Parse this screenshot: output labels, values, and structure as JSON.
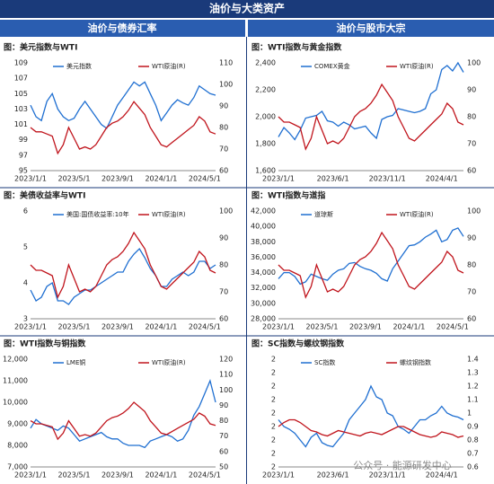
{
  "header": {
    "title": "油价与大类资产",
    "left": "油价与债券汇率",
    "right": "油价与股市大宗"
  },
  "watermark": "公众号 · 能源研发中心",
  "chart_data": [
    {
      "type": "line",
      "title": "图：美元指数与WTI",
      "categories": [
        "2023/1/1",
        null,
        null,
        null,
        null,
        null,
        null,
        null,
        "2023/5/1",
        null,
        null,
        null,
        null,
        null,
        null,
        null,
        "2023/9/1",
        null,
        null,
        null,
        null,
        null,
        null,
        null,
        "2024/1/1",
        null,
        null,
        null,
        null,
        null,
        null,
        null,
        "2024/5/1",
        null,
        null
      ],
      "ylim": [
        95,
        109
      ],
      "yticks": [
        95,
        97,
        99,
        101,
        103,
        105,
        107,
        109
      ],
      "y2lim": [
        60,
        110
      ],
      "y2ticks": [
        60,
        70,
        80,
        90,
        100,
        110
      ],
      "series": [
        {
          "name": "美元指数",
          "color": "#1f6fd1",
          "values": [
            103.5,
            102,
            101.5,
            104,
            105,
            103,
            102,
            101.5,
            101.8,
            103,
            104,
            103,
            102,
            101,
            100.5,
            102,
            103.5,
            104.5,
            105.5,
            106.5,
            106,
            106.5,
            105,
            103.5,
            101.5,
            102.5,
            103.5,
            104.2,
            103.8,
            103.5,
            104.5,
            106,
            105.5,
            105,
            104.8
          ]
        },
        {
          "name": "WTI原油(R)",
          "color": "#c0141c",
          "axis": "y2",
          "values": [
            80,
            78,
            78,
            77,
            76,
            68,
            72,
            80,
            75,
            70,
            71,
            70,
            72,
            76,
            80,
            82,
            83,
            85,
            88,
            92,
            89,
            86,
            80,
            76,
            72,
            71,
            73,
            75,
            77,
            79,
            81,
            85,
            83,
            78,
            77
          ]
        }
      ]
    },
    {
      "type": "line",
      "title": "图：WTI指数与黄金指数",
      "categories": [
        "2023/1/1",
        null,
        null,
        null,
        null,
        null,
        null,
        null,
        null,
        null,
        "2023/6/1",
        null,
        null,
        null,
        null,
        null,
        null,
        null,
        null,
        null,
        "2023/11/1",
        null,
        null,
        null,
        null,
        null,
        null,
        null,
        null,
        null,
        "2024/4/1",
        null,
        null,
        null,
        null
      ],
      "ylim": [
        1600,
        2400
      ],
      "yticks": [
        {
          "value": 1600,
          "label": "1,600"
        },
        {
          "value": 1800,
          "label": "1,800"
        },
        {
          "value": 2000,
          "label": "2,000"
        },
        {
          "value": 2200,
          "label": "2,200"
        },
        {
          "value": 2400,
          "label": "2,400"
        }
      ],
      "y2lim": [
        60,
        100
      ],
      "y2ticks": [
        60,
        70,
        80,
        90,
        100
      ],
      "series": [
        {
          "name": "COMEX黄金",
          "color": "#1f6fd1",
          "values": [
            1850,
            1920,
            1880,
            1830,
            1900,
            1990,
            2000,
            2010,
            2040,
            1970,
            1960,
            1930,
            1960,
            1940,
            1910,
            1920,
            1930,
            1880,
            1840,
            1980,
            2000,
            2010,
            2060,
            2050,
            2040,
            2030,
            2040,
            2060,
            2170,
            2200,
            2350,
            2380,
            2340,
            2400,
            2330
          ]
        },
        {
          "name": "WTI原油(R)",
          "color": "#c0141c",
          "axis": "y2",
          "values": [
            80,
            78,
            78,
            77,
            76,
            68,
            72,
            80,
            75,
            70,
            71,
            70,
            72,
            76,
            80,
            82,
            83,
            85,
            88,
            92,
            89,
            86,
            80,
            76,
            72,
            71,
            73,
            75,
            77,
            79,
            81,
            85,
            83,
            78,
            77
          ]
        }
      ]
    },
    {
      "type": "line",
      "title": "图：美债收益率与WTI",
      "categories": [
        "2023/1/1",
        null,
        null,
        null,
        null,
        null,
        null,
        null,
        "2023/5/1",
        null,
        null,
        null,
        null,
        null,
        null,
        null,
        "2023/9/1",
        null,
        null,
        null,
        null,
        null,
        null,
        null,
        "2024/1/1",
        null,
        null,
        null,
        null,
        null,
        null,
        null,
        "2024/5/1",
        null,
        null
      ],
      "ylim": [
        3,
        6
      ],
      "yticks": [
        3,
        4,
        5,
        6
      ],
      "y2lim": [
        60,
        100
      ],
      "y2ticks": [
        60,
        70,
        80,
        90,
        100
      ],
      "series": [
        {
          "name": "美国:国债收益率:10年",
          "color": "#1f6fd1",
          "values": [
            3.8,
            3.5,
            3.6,
            3.9,
            4.0,
            3.5,
            3.5,
            3.4,
            3.6,
            3.7,
            3.8,
            3.8,
            3.9,
            4.0,
            4.1,
            4.2,
            4.3,
            4.3,
            4.6,
            4.8,
            4.95,
            4.7,
            4.4,
            4.2,
            3.9,
            3.9,
            4.1,
            4.2,
            4.3,
            4.2,
            4.3,
            4.6,
            4.6,
            4.4,
            4.5
          ]
        },
        {
          "name": "WTI原油(R)",
          "color": "#c0141c",
          "axis": "y2",
          "values": [
            80,
            78,
            78,
            77,
            76,
            68,
            72,
            80,
            75,
            70,
            71,
            70,
            72,
            76,
            80,
            82,
            83,
            85,
            88,
            92,
            89,
            86,
            80,
            76,
            72,
            71,
            73,
            75,
            77,
            79,
            81,
            85,
            83,
            78,
            77
          ]
        }
      ]
    },
    {
      "type": "line",
      "title": "图：WTI指数与道指",
      "categories": [
        "2023/1/1",
        null,
        null,
        null,
        null,
        null,
        null,
        null,
        "2023/5/1",
        null,
        null,
        null,
        null,
        null,
        null,
        null,
        "2023/9/1",
        null,
        null,
        null,
        null,
        null,
        null,
        null,
        "2024/1/1",
        null,
        null,
        null,
        null,
        null,
        null,
        null,
        "2024/5/1",
        null,
        null
      ],
      "ylim": [
        28000,
        42000
      ],
      "yticks": [
        {
          "value": 28000,
          "label": "28,000"
        },
        {
          "value": 30000,
          "label": "30,000"
        },
        {
          "value": 32000,
          "label": "32,000"
        },
        {
          "value": 34000,
          "label": "34,000"
        },
        {
          "value": 36000,
          "label": "36,000"
        },
        {
          "value": 38000,
          "label": "38,000"
        },
        {
          "value": 40000,
          "label": "40,000"
        },
        {
          "value": 42000,
          "label": "42,000"
        }
      ],
      "y2lim": [
        60,
        100
      ],
      "y2ticks": [
        60,
        70,
        80,
        90,
        100
      ],
      "series": [
        {
          "name": "道琼斯",
          "color": "#1f6fd1",
          "values": [
            33200,
            34000,
            34000,
            33500,
            32500,
            32800,
            33800,
            33500,
            33200,
            33000,
            33800,
            34300,
            34500,
            35200,
            35300,
            34800,
            34500,
            34300,
            33900,
            33200,
            32900,
            34500,
            35500,
            36500,
            37500,
            37600,
            38000,
            38600,
            39000,
            39500,
            38000,
            38300,
            39500,
            39800,
            38700
          ]
        },
        {
          "name": "WTI原油(R)",
          "color": "#c0141c",
          "axis": "y2",
          "values": [
            80,
            78,
            78,
            77,
            76,
            68,
            72,
            80,
            75,
            70,
            71,
            70,
            72,
            76,
            80,
            82,
            83,
            85,
            88,
            92,
            89,
            86,
            80,
            76,
            72,
            71,
            73,
            75,
            77,
            79,
            81,
            85,
            83,
            78,
            77
          ]
        }
      ]
    },
    {
      "type": "line",
      "title": "图：WTI指数与铜指数",
      "categories": [
        "2023/1/1",
        null,
        null,
        null,
        null,
        null,
        null,
        null,
        "2023/5/1",
        null,
        null,
        null,
        null,
        null,
        null,
        null,
        "2023/9/1",
        null,
        null,
        null,
        null,
        null,
        null,
        null,
        "2024/1/1",
        null,
        null,
        null,
        null,
        null,
        null,
        null,
        "2024/5/1",
        null,
        null
      ],
      "ylim": [
        7000,
        12000
      ],
      "yticks": [
        {
          "value": 7000,
          "label": "7,000"
        },
        {
          "value": 8000,
          "label": "8,000"
        },
        {
          "value": 9000,
          "label": "9,000"
        },
        {
          "value": 10000,
          "label": "10,000"
        },
        {
          "value": 11000,
          "label": "11,000"
        },
        {
          "value": 12000,
          "label": "12,000"
        }
      ],
      "y2lim": [
        50,
        120
      ],
      "y2ticks": [
        50,
        60,
        70,
        80,
        90,
        100,
        110,
        120
      ],
      "series": [
        {
          "name": "LME铜",
          "color": "#1f6fd1",
          "values": [
            8800,
            9200,
            9000,
            8900,
            8800,
            8700,
            8900,
            8800,
            8500,
            8200,
            8300,
            8400,
            8500,
            8600,
            8400,
            8300,
            8300,
            8100,
            8000,
            8000,
            8000,
            7900,
            8200,
            8300,
            8400,
            8500,
            8400,
            8200,
            8300,
            8700,
            9400,
            9800,
            10400,
            11000,
            10000
          ]
        },
        {
          "name": "WTI原油(R)",
          "color": "#c0141c",
          "axis": "y2",
          "values": [
            80,
            78,
            78,
            77,
            76,
            68,
            72,
            80,
            75,
            70,
            71,
            70,
            72,
            76,
            80,
            82,
            83,
            85,
            88,
            92,
            89,
            86,
            80,
            76,
            72,
            71,
            73,
            75,
            77,
            79,
            81,
            85,
            83,
            78,
            77
          ]
        }
      ]
    },
    {
      "type": "line",
      "title": "图：SC指数与螺纹钢指数",
      "categories": [
        "2023/1/1",
        null,
        null,
        null,
        null,
        null,
        null,
        null,
        null,
        null,
        "2023/6/1",
        null,
        null,
        null,
        null,
        null,
        null,
        null,
        null,
        null,
        "2023/11/1",
        null,
        null,
        null,
        null,
        null,
        null,
        null,
        null,
        null,
        "2024/4/1",
        null,
        null,
        null,
        null
      ],
      "ylim": [
        1.6,
        2.4
      ],
      "yticks": [
        {
          "value": 1.6,
          "label": "2"
        },
        {
          "value": 1.7,
          "label": "2"
        },
        {
          "value": 1.8,
          "label": "2"
        },
        {
          "value": 1.9,
          "label": "2"
        },
        {
          "value": 2.0,
          "label": "2"
        },
        {
          "value": 2.1,
          "label": "2"
        },
        {
          "value": 2.2,
          "label": "2"
        },
        {
          "value": 2.3,
          "label": "2"
        },
        {
          "value": 2.4,
          "label": "2"
        }
      ],
      "y2lim": [
        0.6,
        1.4
      ],
      "y2ticks": [
        0.6,
        0.7,
        0.8,
        0.9,
        1,
        1.1,
        1.2,
        1.3,
        1.4
      ],
      "series": [
        {
          "name": "SC指数",
          "color": "#1f6fd1",
          "values": [
            1.95,
            1.9,
            1.88,
            1.85,
            1.8,
            1.75,
            1.82,
            1.85,
            1.78,
            1.76,
            1.75,
            1.8,
            1.85,
            1.95,
            2.0,
            2.05,
            2.1,
            2.2,
            2.12,
            2.1,
            2.0,
            1.98,
            1.9,
            1.88,
            1.85,
            1.9,
            1.95,
            1.95,
            1.98,
            2.0,
            2.05,
            2.0,
            1.98,
            1.97,
            1.95
          ]
        },
        {
          "name": "螺纹钢指数",
          "color": "#c0141c",
          "axis": "y2",
          "values": [
            0.9,
            0.93,
            0.95,
            0.95,
            0.93,
            0.9,
            0.87,
            0.86,
            0.84,
            0.83,
            0.85,
            0.87,
            0.86,
            0.85,
            0.84,
            0.83,
            0.85,
            0.86,
            0.85,
            0.84,
            0.86,
            0.88,
            0.9,
            0.9,
            0.88,
            0.86,
            0.84,
            0.83,
            0.82,
            0.83,
            0.86,
            0.85,
            0.84,
            0.82,
            0.83
          ]
        }
      ]
    }
  ]
}
